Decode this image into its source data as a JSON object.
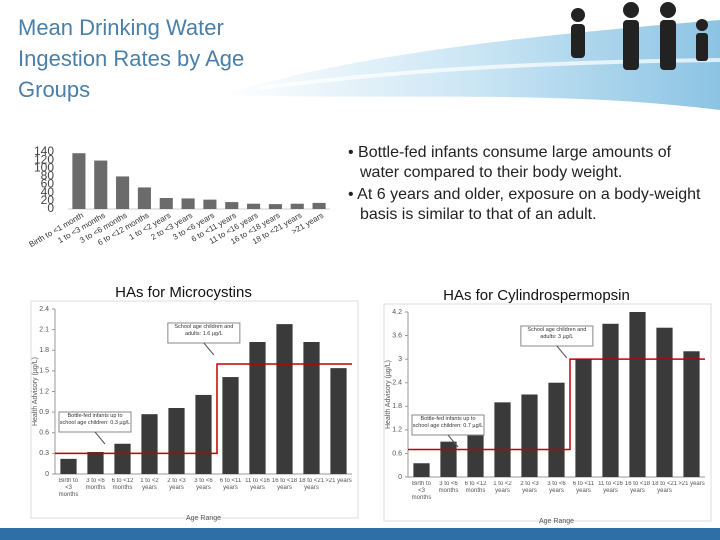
{
  "title": "Mean Drinking Water Ingestion Rates by Age Groups",
  "bullets": [
    "Bottle-fed infants consume large amounts of water compared to their body weight.",
    "At 6 years and older, exposure on a body-weight basis is similar to that of an adult."
  ],
  "chart_data": [
    {
      "type": "bar",
      "color": "#6b6b6b",
      "categories": [
        "Birth to <1 month",
        "1 to <3 months",
        "3 to <6 months",
        "6 to <12 months",
        "1 to <2 years",
        "2 to <3 years",
        "3 to <6 years",
        "6 to <11 years",
        "11 to <16 years",
        "16 to <18 years",
        "18 to <21 years",
        ">21 years"
      ],
      "values": [
        137,
        119,
        80,
        53,
        27,
        26,
        23,
        17,
        13,
        12,
        13,
        15
      ],
      "ylim": [
        0,
        140
      ],
      "yticks": [
        0,
        20,
        40,
        60,
        80,
        100,
        120,
        140
      ]
    },
    {
      "type": "bar",
      "title": "HAs for Microcystins",
      "color": "#3a3a3a",
      "x_label": "Age Range",
      "y_label": "Health Advisory (µg/L)",
      "categories": [
        "Birth to <3 months",
        "3 to <6 months",
        "6 to <12 months",
        "1 to <2 years",
        "2 to <3 years",
        "3 to <6 years",
        "6 to <11 years",
        "11 to <16 years",
        "16 to <18 years",
        "18 to <21 years",
        ">21 years"
      ],
      "values": [
        0.22,
        0.32,
        0.44,
        0.87,
        0.96,
        1.15,
        1.41,
        1.92,
        2.18,
        1.92,
        1.54
      ],
      "lines": [
        {
          "color": "#c00000",
          "values": [
            0.3,
            0.3,
            0.3,
            0.3,
            0.3,
            0.3,
            1.6,
            1.6,
            1.6,
            1.6,
            1.6
          ]
        }
      ],
      "annotations": [
        "Bottle-fed infants up to school age children: 0.3 µg/L",
        "School age children and adults: 1.6 µg/L"
      ],
      "ylim": [
        0,
        2.4
      ],
      "yticks": [
        0,
        0.3,
        0.6,
        0.9,
        1.2,
        1.5,
        1.8,
        2.1,
        2.4
      ]
    },
    {
      "type": "bar",
      "title": "HAs for Cylindrospermopsin",
      "color": "#3a3a3a",
      "x_label": "Age Range",
      "y_label": "Health Advisory (µg/L)",
      "categories": [
        "Birth to <3 months",
        "3 to <6 months",
        "6 to <12 months",
        "1 to <2 years",
        "2 to <3 years",
        "3 to <6 years",
        "6 to <11 years",
        "11 to <16 years",
        "16 to <18 years",
        "18 to <21 years",
        ">21 years"
      ],
      "values": [
        0.35,
        0.9,
        1.2,
        1.9,
        2.1,
        2.4,
        3.0,
        3.9,
        4.2,
        3.8,
        3.2
      ],
      "lines": [
        {
          "color": "#c00000",
          "values": [
            0.7,
            0.7,
            0.7,
            0.7,
            0.7,
            0.7,
            3,
            3,
            3,
            3,
            3
          ]
        }
      ],
      "annotations": [
        "Bottle-fed infants up to school age children: 0.7 µg/L",
        "School age children and adults: 3 µg/L"
      ],
      "ylim": [
        0,
        4.2
      ],
      "yticks": [
        0,
        0.6,
        1.2,
        1.8,
        2.4,
        3,
        3.6,
        4.2
      ]
    }
  ]
}
